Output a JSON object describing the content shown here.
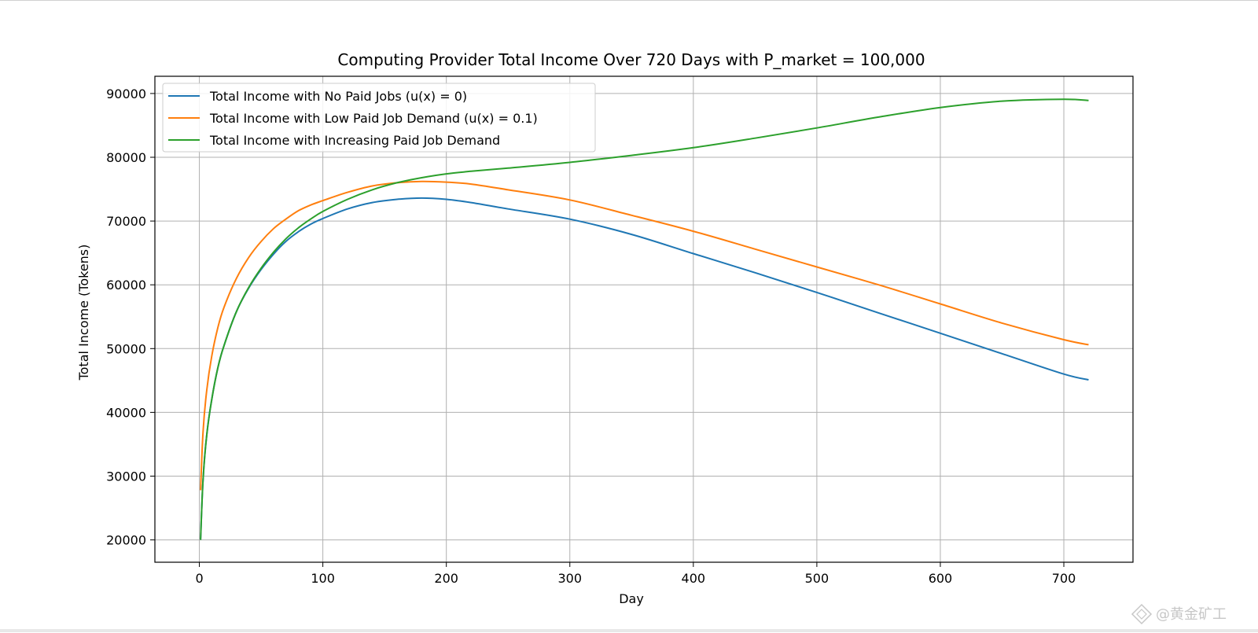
{
  "colors": {
    "series_blue": "#1f77b4",
    "series_orange": "#ff7f0e",
    "series_green": "#2ca02c",
    "grid": "#b0b0b0",
    "watermark": "#c7c7c7"
  },
  "watermark": {
    "text": "@黄金矿工",
    "icon": "diamond-logo-icon"
  },
  "chart_data": {
    "type": "line",
    "title": "Computing Provider Total Income Over 720 Days with P_market = 100,000",
    "xlabel": "Day",
    "ylabel": "Total Income (Tokens)",
    "xlim": [
      -36,
      756
    ],
    "ylim": [
      16500,
      92700
    ],
    "xticks": [
      0,
      100,
      200,
      300,
      400,
      500,
      600,
      700
    ],
    "yticks": [
      20000,
      30000,
      40000,
      50000,
      60000,
      70000,
      80000,
      90000
    ],
    "grid": true,
    "legend_position": "top-left",
    "series": [
      {
        "name": "Total Income with No Paid Jobs (u(x) = 0)",
        "color": "#1f77b4",
        "x": [
          1,
          3,
          6,
          10,
          15,
          20,
          30,
          40,
          50,
          60,
          70,
          80,
          90,
          100,
          120,
          140,
          160,
          180,
          200,
          220,
          250,
          300,
          350,
          400,
          450,
          500,
          550,
          600,
          650,
          700,
          720
        ],
        "y": [
          20000,
          29500,
          36500,
          42000,
          47000,
          50500,
          55800,
          59500,
          62400,
          64800,
          66800,
          68300,
          69500,
          70400,
          71900,
          72900,
          73400,
          73600,
          73400,
          72900,
          71900,
          70300,
          67900,
          64900,
          61900,
          58800,
          55600,
          52400,
          49200,
          46000,
          45100
        ]
      },
      {
        "name": "Total Income with Low Paid Job Demand (u(x) = 0.1)",
        "color": "#ff7f0e",
        "x": [
          1,
          3,
          6,
          10,
          15,
          20,
          30,
          40,
          50,
          60,
          70,
          80,
          90,
          100,
          120,
          140,
          160,
          180,
          200,
          220,
          250,
          300,
          350,
          400,
          450,
          500,
          550,
          600,
          650,
          700,
          720
        ],
        "y": [
          27800,
          37000,
          43500,
          48800,
          53300,
          56500,
          61000,
          64300,
          66800,
          68800,
          70300,
          71600,
          72500,
          73200,
          74500,
          75500,
          76000,
          76200,
          76100,
          75800,
          74900,
          73300,
          70900,
          68400,
          65600,
          62800,
          60000,
          57000,
          54000,
          51400,
          50600
        ]
      },
      {
        "name": "Total Income with Increasing Paid Job Demand",
        "color": "#2ca02c",
        "x": [
          1,
          3,
          6,
          10,
          15,
          20,
          30,
          40,
          50,
          60,
          70,
          80,
          90,
          100,
          120,
          140,
          160,
          180,
          200,
          220,
          250,
          300,
          350,
          400,
          450,
          500,
          550,
          600,
          650,
          700,
          720
        ],
        "y": [
          20000,
          29500,
          36500,
          42000,
          47000,
          50500,
          55800,
          59600,
          62600,
          65100,
          67200,
          68900,
          70300,
          71500,
          73400,
          74900,
          76000,
          76800,
          77400,
          77800,
          78300,
          79200,
          80300,
          81500,
          83000,
          84600,
          86300,
          87800,
          88800,
          89100,
          88900
        ]
      }
    ]
  }
}
